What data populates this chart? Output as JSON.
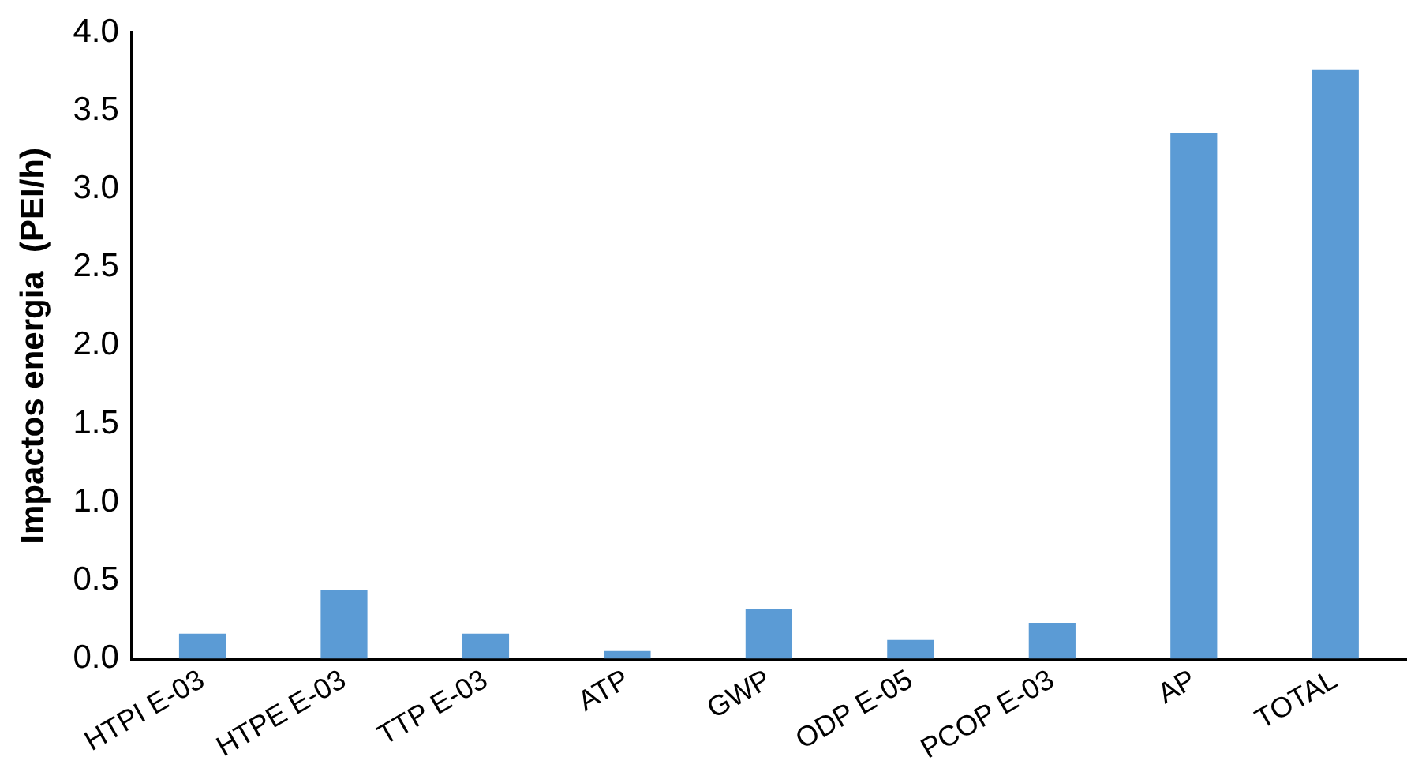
{
  "chart_data": {
    "type": "bar",
    "ylabel": "Impactos energia  (PEI/h)",
    "categories": [
      "HTPI E-03",
      "HTPE E-03",
      "TTP E-03",
      "ATP",
      "GWP",
      "ODP E-05",
      "PCOP E-03",
      "AP",
      "TOTAL"
    ],
    "values": [
      0.16,
      0.44,
      0.16,
      0.05,
      0.32,
      0.12,
      0.23,
      3.36,
      3.76
    ],
    "color": "#5b9bd5",
    "ylim": [
      0,
      4
    ],
    "yticks": [
      {
        "value": 0,
        "label": "0.0"
      },
      0.5,
      {
        "value": 1,
        "label": "1.0"
      },
      1.5,
      {
        "value": 2,
        "label": "2.0"
      },
      2.5,
      {
        "value": 3,
        "label": "3.0"
      },
      3.5,
      {
        "value": 4,
        "label": "4.0"
      }
    ],
    "grid": false,
    "legend": false
  }
}
